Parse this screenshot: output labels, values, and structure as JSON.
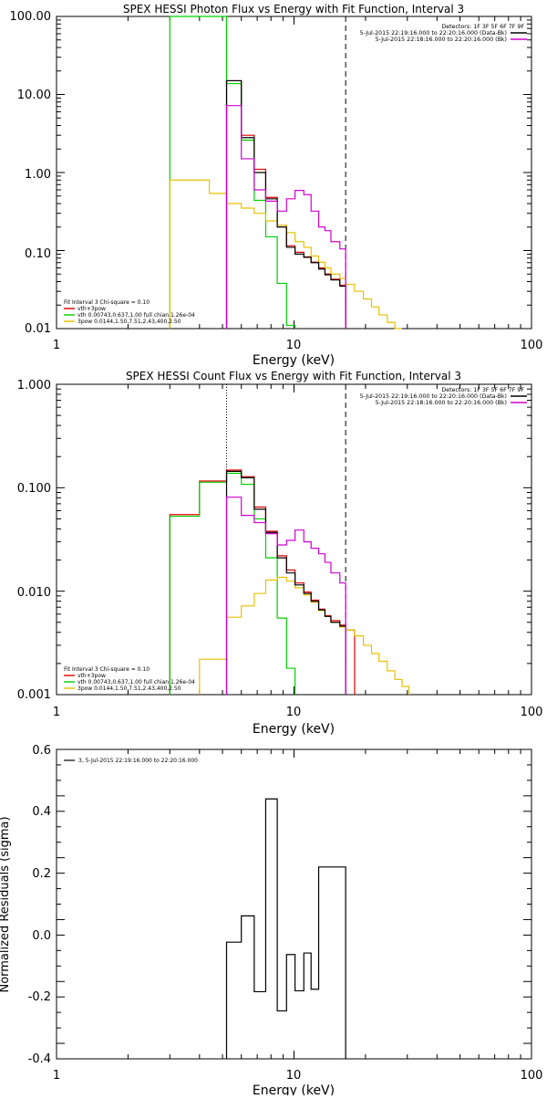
{
  "chart_data": [
    {
      "type": "line",
      "scale": "log-log",
      "title": "SPEX HESSI Photon Flux vs Energy with Fit Function, Interval 3",
      "xlabel": "Energy (keV)",
      "ylabel": "",
      "xlim": [
        1,
        100
      ],
      "ylim": [
        0.01,
        100
      ],
      "xtick_labels": [
        "1",
        "10",
        "100"
      ],
      "ytick_labels": [
        "0.01",
        "0.10",
        "1.00",
        "10.00",
        "100.00"
      ],
      "info": [
        "Detectors: 1F 3F 5F 6F 7F 9F",
        "5-Jul-2015 22:19:16.000 to 22:20:16.000 (Data-Bk)",
        "5-Jul-2015 22:18:16.000 to 22:20:16.000 (Bk)"
      ],
      "legend": [
        "Fit Interval 3   Chi-square = 0.10",
        "vth+3pow",
        "vth 0.00743,0.637,1.00  full chian 1.26e-04",
        "3pow 0.0144,1.50,7.51,2.43,400,2.50"
      ],
      "vlines": [
        5.2,
        16.5
      ],
      "series": [
        {
          "name": "vth+3pow",
          "color": "#e00000",
          "edges": [
            5.2,
            6.0,
            6.8,
            7.6,
            8.5,
            9.3,
            10.1,
            11.0,
            11.8,
            12.7,
            13.5,
            14.3,
            15.6,
            16.5
          ],
          "values": [
            15.0,
            3.0,
            1.1,
            0.48,
            0.21,
            0.115,
            0.095,
            0.083,
            0.071,
            0.06,
            0.05,
            0.043,
            0.036
          ]
        },
        {
          "name": "vth",
          "color": "#00d000",
          "edges": [
            3.0,
            4.4,
            5.2,
            6.0,
            6.8,
            7.6,
            8.5,
            9.3,
            10.1
          ],
          "values": [
            100,
            100,
            13.8,
            2.6,
            0.44,
            0.15,
            0.038,
            0.011
          ]
        },
        {
          "name": "3pow",
          "color": "#e8c000",
          "edges": [
            3.0,
            4.4,
            5.2,
            6.0,
            6.8,
            7.6,
            8.5,
            9.3,
            10.1,
            11.0,
            11.8,
            12.7,
            13.5,
            14.3,
            15.6,
            16.5,
            18.0,
            19.6,
            21.2,
            22.8,
            24.7,
            26.6,
            28.5
          ],
          "values": [
            0.8,
            0.54,
            0.4,
            0.35,
            0.3,
            0.24,
            0.21,
            0.17,
            0.13,
            0.11,
            0.085,
            0.071,
            0.06,
            0.05,
            0.044,
            0.037,
            0.03,
            0.024,
            0.019,
            0.015,
            0.012,
            0.01
          ]
        },
        {
          "name": "data",
          "color": "#000000",
          "edges": [
            5.2,
            6.0,
            6.8,
            7.6,
            8.5,
            9.3,
            10.1,
            11.0,
            11.8,
            12.7,
            13.5,
            14.3,
            15.6,
            16.5
          ],
          "values": [
            15.0,
            2.8,
            1.0,
            0.46,
            0.2,
            0.11,
            0.09,
            0.082,
            0.07,
            0.058,
            0.049,
            0.042,
            0.035
          ]
        },
        {
          "name": "Bk",
          "color": "#d000d0",
          "edges": [
            5.2,
            6.0,
            6.8,
            7.6,
            8.5,
            9.3,
            10.1,
            11.0,
            11.8,
            12.7,
            13.5,
            14.3,
            15.6,
            16.5
          ],
          "values": [
            7.2,
            1.5,
            0.6,
            0.43,
            0.32,
            0.46,
            0.59,
            0.52,
            0.32,
            0.2,
            0.18,
            0.13,
            0.105
          ]
        }
      ]
    },
    {
      "type": "line",
      "scale": "log-log",
      "title": "SPEX HESSI Count Flux vs Energy with Fit Function, Interval 3",
      "xlabel": "Energy (keV)",
      "ylabel": "",
      "xlim": [
        1,
        100
      ],
      "ylim": [
        0.001,
        1
      ],
      "xtick_labels": [
        "1",
        "10",
        "100"
      ],
      "ytick_labels": [
        "0.001",
        "0.010",
        "0.100",
        "1.000"
      ],
      "info": [
        "Detectors: 1F 3F 5F 6F 7F 9F",
        "5-Jul-2015 22:19:16.000 to 22:20:16.000 (Data-Bk)",
        "5-Jul-2015 22:18:16.000 to 22:20:16.000 (Bk)"
      ],
      "legend": [
        "Fit Interval 3   Chi-square = 0.10",
        "vth+3pow",
        "vth 0.00743,0.637,1.00  full chian 1.26e-04",
        "3pow 0.0144,1.50,7.51,2.43,400,2.50"
      ],
      "vlines": [
        5.2,
        16.5
      ],
      "series": [
        {
          "name": "vth+3pow",
          "color": "#e00000",
          "edges": [
            3.0,
            4.0,
            5.2,
            6.0,
            6.8,
            7.6,
            8.5,
            9.3,
            10.1,
            11.0,
            11.8,
            12.7,
            13.5,
            14.3,
            15.6,
            16.5,
            18.0
          ],
          "values": [
            0.055,
            0.116,
            0.148,
            0.128,
            0.065,
            0.038,
            0.022,
            0.016,
            0.012,
            0.0098,
            0.0082,
            0.0067,
            0.0058,
            0.0052,
            0.0047,
            0.0042
          ]
        },
        {
          "name": "vth",
          "color": "#00d000",
          "edges": [
            3.0,
            4.0,
            5.2,
            6.0,
            6.8,
            7.6,
            8.5,
            9.3,
            10.1
          ],
          "values": [
            0.053,
            0.113,
            0.138,
            0.108,
            0.05,
            0.021,
            0.0055,
            0.0018
          ]
        },
        {
          "name": "3pow",
          "color": "#e8c000",
          "edges": [
            4.0,
            5.2,
            6.0,
            6.8,
            7.6,
            8.5,
            9.3,
            10.1,
            11.0,
            11.8,
            12.7,
            13.5,
            14.3,
            15.6,
            16.5,
            18.0,
            19.6,
            21.2,
            22.8,
            24.7,
            26.6,
            28.5,
            30.5
          ],
          "values": [
            0.0022,
            0.0056,
            0.0072,
            0.0095,
            0.0128,
            0.0136,
            0.0125,
            0.0108,
            0.0092,
            0.0078,
            0.0065,
            0.0057,
            0.005,
            0.0045,
            0.0042,
            0.0037,
            0.003,
            0.0025,
            0.0021,
            0.0017,
            0.0014,
            0.0012
          ]
        },
        {
          "name": "data",
          "color": "#000000",
          "edges": [
            5.2,
            6.0,
            6.8,
            7.6,
            8.5,
            9.3,
            10.1,
            11.0,
            11.8,
            12.7,
            13.5,
            14.3,
            15.6,
            16.5
          ],
          "values": [
            0.144,
            0.125,
            0.062,
            0.037,
            0.021,
            0.015,
            0.0115,
            0.0095,
            0.008,
            0.0066,
            0.0057,
            0.005,
            0.0046
          ]
        },
        {
          "name": "Bk",
          "color": "#d000d0",
          "edges": [
            5.2,
            6.0,
            6.8,
            7.6,
            8.5,
            9.3,
            10.1,
            11.0,
            11.8,
            12.7,
            13.5,
            14.3,
            15.6,
            16.5
          ],
          "values": [
            0.081,
            0.054,
            0.046,
            0.036,
            0.028,
            0.031,
            0.039,
            0.03,
            0.026,
            0.023,
            0.019,
            0.015,
            0.012
          ]
        }
      ]
    },
    {
      "type": "line",
      "scale": "log-x",
      "title": "",
      "xlabel": "Energy (keV)",
      "ylabel": "Normalized Residuals (sigma)",
      "xlim": [
        1,
        100
      ],
      "ylim": [
        -0.4,
        0.6
      ],
      "xtick_labels": [
        "1",
        "10",
        "100"
      ],
      "ytick_labels": [
        "-0.4",
        "-0.2",
        "0.0",
        "0.2",
        "0.4",
        "0.6"
      ],
      "legend": [
        "3,  5-Jul-2015 22:19:16.000 to 22:20:16.000"
      ],
      "series": [
        {
          "name": "3,  5-Jul-2015 22:19:16.000 to 22:20:16.000",
          "color": "#000000",
          "edges": [
            5.2,
            6.0,
            6.8,
            7.6,
            8.5,
            9.3,
            10.1,
            11.0,
            11.8,
            12.7,
            13.5,
            14.3,
            15.6,
            16.5
          ],
          "values": [
            -0.023,
            0.062,
            -0.183,
            0.44,
            -0.245,
            -0.063,
            -0.18,
            -0.058,
            -0.175,
            0.22,
            0.22,
            0.22,
            0.22
          ]
        }
      ]
    }
  ]
}
